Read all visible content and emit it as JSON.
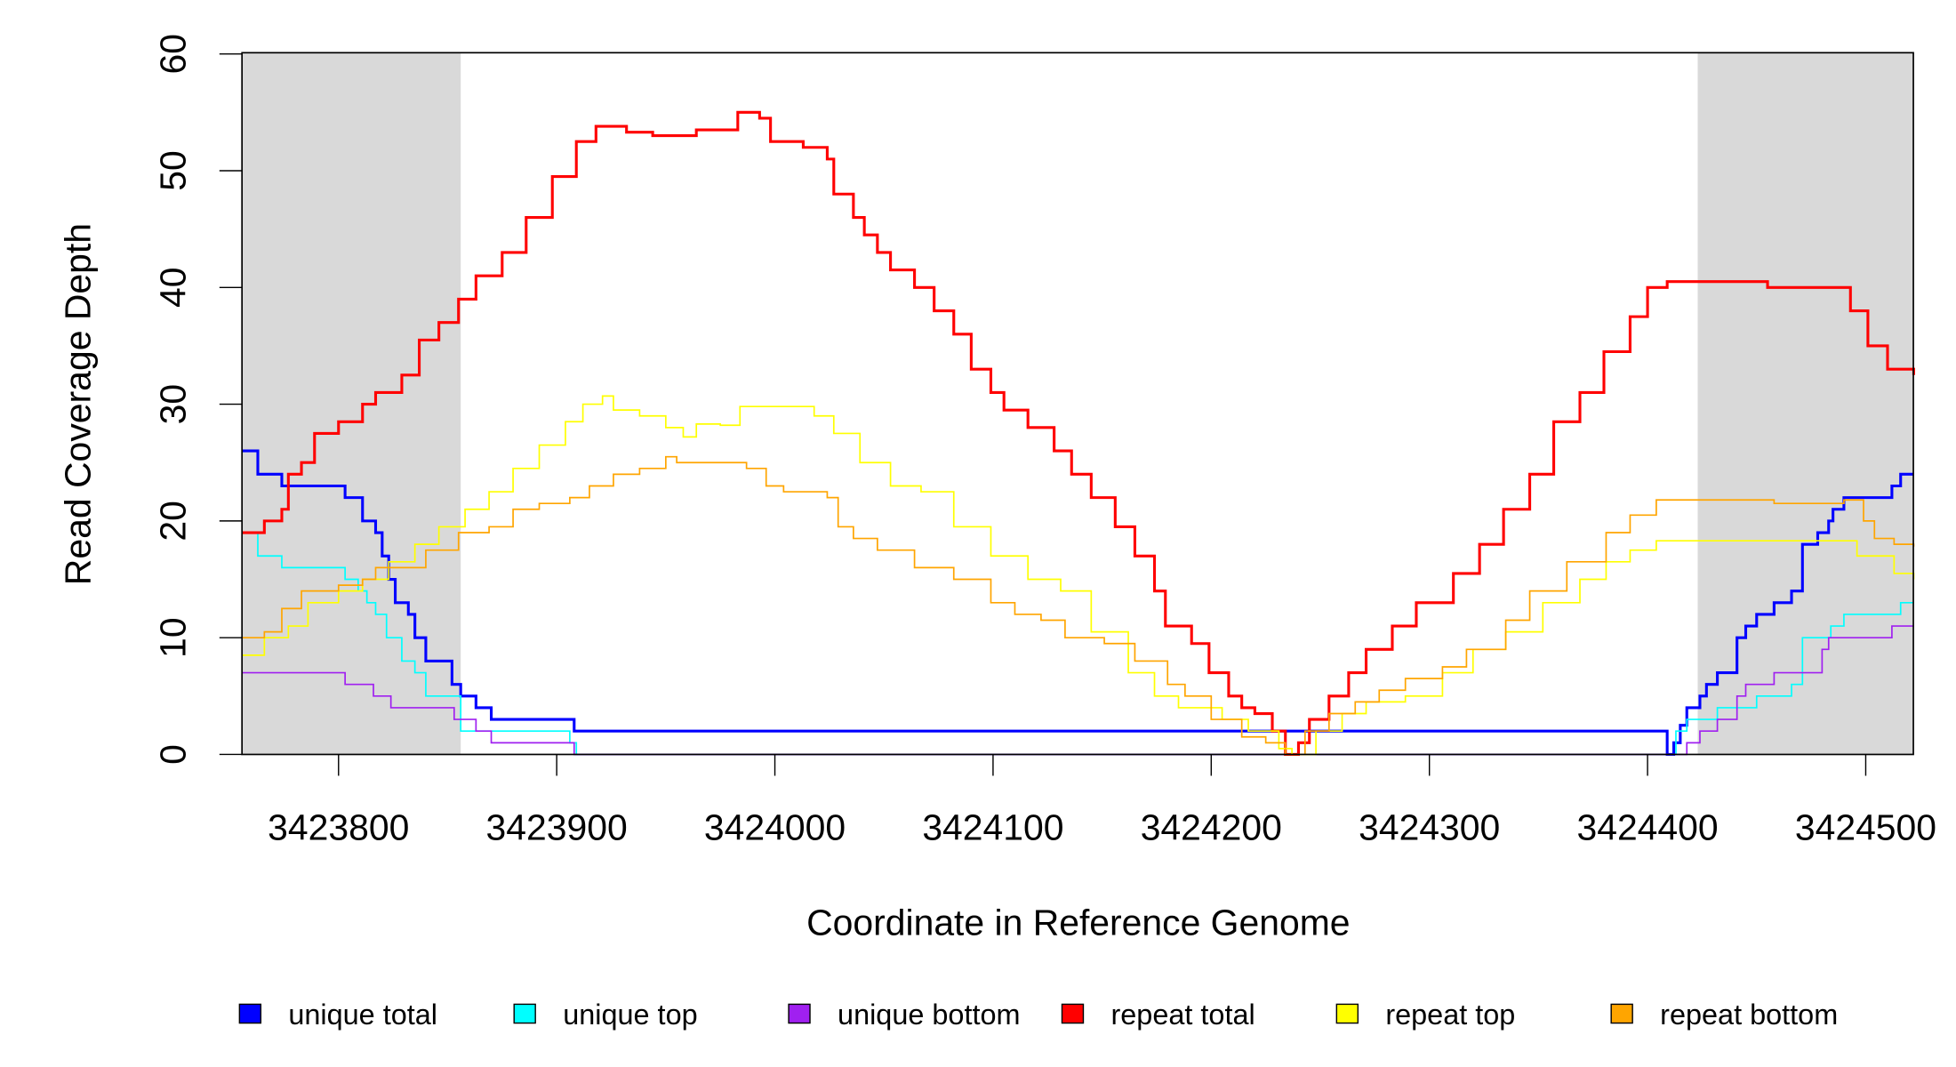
{
  "chart_data": {
    "type": "line",
    "step": true,
    "title": "",
    "xlabel": "Coordinate in Reference Genome",
    "ylabel": "Read Coverage Depth",
    "xlim": [
      3423756,
      3424522
    ],
    "ylim": [
      0,
      60
    ],
    "xticks": [
      3423800,
      3423900,
      3424000,
      3424100,
      3424200,
      3424300,
      3424400,
      3424500
    ],
    "xtick_labels": [
      "3423800",
      "3423900",
      "3424000",
      "3424100",
      "3424200",
      "3424300",
      "3424400",
      "3424500"
    ],
    "yticks": [
      0,
      10,
      20,
      30,
      40,
      50,
      60
    ],
    "ytick_labels": [
      "0",
      "10",
      "20",
      "30",
      "40",
      "50",
      "60"
    ],
    "grid": false,
    "shaded_regions": [
      [
        3423756,
        3423856
      ],
      [
        3424423,
        3424522
      ]
    ],
    "shade_color": "#d9d9d9",
    "legend_position": "bottom",
    "series": [
      {
        "name": "unique total",
        "color": "#0000ff",
        "width": 2.2,
        "x": [
          3423756,
          3423763,
          3423774,
          3423797,
          3423803,
          3423811,
          3423817,
          3423820,
          3423823,
          3423826,
          3423832,
          3423835,
          3423840,
          3423852,
          3423856,
          3423863,
          3423870,
          3423908,
          3424409,
          3424412,
          3424415,
          3424418,
          3424424,
          3424427,
          3424432,
          3424441,
          3424445,
          3424450,
          3424458,
          3424466,
          3424471,
          3424478,
          3424483,
          3424485,
          3424490,
          3424512,
          3424516,
          3424522
        ],
        "y": [
          26,
          24,
          23,
          23,
          22,
          20,
          19,
          17,
          15,
          13,
          12,
          10,
          8,
          6,
          5,
          4,
          3,
          2,
          0,
          1,
          2.5,
          4,
          5,
          6,
          7,
          10,
          11,
          12,
          13,
          14,
          18,
          19,
          20,
          21,
          22,
          23,
          24,
          24
        ]
      },
      {
        "name": "unique top",
        "color": "#00ffff",
        "width": 1.2,
        "x": [
          3423756,
          3423763,
          3423774,
          3423797,
          3423803,
          3423809,
          3423813,
          3423817,
          3423822,
          3423829,
          3423835,
          3423840,
          3423856,
          3423906,
          3423909,
          3424409,
          3424413,
          3424418,
          3424432,
          3424450,
          3424466,
          3424471,
          3424484,
          3424490,
          3424516,
          3424522
        ],
        "y": [
          19,
          17,
          16,
          16,
          15,
          14,
          13,
          12,
          10,
          8,
          7,
          5,
          2,
          1,
          0,
          0,
          2,
          3,
          4,
          5,
          6,
          10,
          11,
          12,
          13,
          13
        ]
      },
      {
        "name": "unique bottom",
        "color": "#a020f0",
        "width": 1.2,
        "x": [
          3423756,
          3423803,
          3423816,
          3423824,
          3423853,
          3423863,
          3423870,
          3423908,
          3424415,
          3424418,
          3424424,
          3424432,
          3424441,
          3424445,
          3424458,
          3424480,
          3424483,
          3424512,
          3424522
        ],
        "y": [
          7,
          6,
          5,
          4,
          3,
          2,
          1,
          0,
          0,
          1,
          2,
          3,
          5,
          6,
          7,
          9,
          10,
          11,
          11
        ]
      },
      {
        "name": "repeat total",
        "color": "#ff0000",
        "width": 2.2,
        "x": [
          3423756,
          3423766,
          3423774,
          3423777,
          3423783,
          3423789,
          3423800,
          3423811,
          3423817,
          3423829,
          3423837,
          3423846,
          3423855,
          3423863,
          3423875,
          3423886,
          3423898,
          3423909,
          3423918,
          3423932,
          3423944,
          3423955,
          3423964,
          3423975,
          3423983,
          3423993,
          3423998,
          3424013,
          3424024,
          3424027,
          3424036,
          3424041,
          3424047,
          3424053,
          3424064,
          3424073,
          3424082,
          3424090,
          3424099,
          3424105,
          3424116,
          3424128,
          3424136,
          3424145,
          3424156,
          3424165,
          3424174,
          3424179,
          3424191,
          3424199,
          3424208,
          3424214,
          3424220,
          3424228,
          3424234,
          3424240,
          3424245,
          3424254,
          3424263,
          3424271,
          3424283,
          3424294,
          3424311,
          3424323,
          3424334,
          3424346,
          3424357,
          3424369,
          3424380,
          3424392,
          3424400,
          3424409,
          3424444,
          3424455,
          3424487,
          3424493,
          3424501,
          3424510,
          3424522
        ],
        "y": [
          19,
          20,
          21,
          24,
          25,
          27.5,
          28.5,
          30,
          31,
          32.5,
          35.5,
          37,
          39,
          41,
          43,
          46,
          49.5,
          52.5,
          53.8,
          53.3,
          53,
          53,
          53.5,
          53.5,
          55,
          54.5,
          52.5,
          52,
          51,
          48,
          46,
          44.5,
          43,
          41.5,
          40,
          38,
          36,
          33,
          31,
          29.5,
          28,
          26,
          24,
          22,
          19.5,
          17,
          14,
          11,
          9.5,
          7,
          5,
          4,
          3.5,
          2,
          0,
          1,
          3,
          5,
          7,
          9,
          11,
          13,
          15.5,
          18,
          21,
          24,
          28.5,
          31,
          34.5,
          37.5,
          40,
          40.5,
          40.5,
          40,
          40,
          38,
          35,
          33,
          32.5
        ]
      },
      {
        "name": "repeat top",
        "color": "#ffff00",
        "width": 1.2,
        "x": [
          3423756,
          3423766,
          3423777,
          3423786,
          3423800,
          3423811,
          3423823,
          3423835,
          3423846,
          3423858,
          3423869,
          3423880,
          3423892,
          3423904,
          3423912,
          3423921,
          3423926,
          3423938,
          3423950,
          3423958,
          3423964,
          3423975,
          3423984,
          3423996,
          3424018,
          3424027,
          3424039,
          3424053,
          3424067,
          3424082,
          3424099,
          3424116,
          3424131,
          3424145,
          3424162,
          3424174,
          3424185,
          3424205,
          3424217,
          3424231,
          3424237,
          3424248,
          3424260,
          3424271,
          3424289,
          3424306,
          3424320,
          3424335,
          3424352,
          3424369,
          3424381,
          3424392,
          3424404,
          3424450,
          3424484,
          3424496,
          3424513,
          3424522
        ],
        "y": [
          8.5,
          10,
          11,
          13,
          14,
          15,
          16.5,
          18,
          19.5,
          21,
          22.5,
          24.5,
          26.5,
          28.5,
          30,
          30.7,
          29.5,
          29,
          28,
          27.2,
          28.3,
          28.2,
          29.8,
          29.8,
          29,
          27.5,
          25,
          23,
          22.5,
          19.5,
          17,
          15,
          14,
          10.5,
          7,
          5,
          4,
          3,
          2,
          0.5,
          0,
          2,
          3.5,
          4.5,
          5,
          7,
          9,
          10.5,
          13,
          15,
          16.5,
          17.5,
          18.3,
          18.3,
          18.3,
          17,
          15.5,
          15
        ]
      },
      {
        "name": "repeat bottom",
        "color": "#ffa500",
        "width": 1.2,
        "x": [
          3423756,
          3423766,
          3423774,
          3423783,
          3423800,
          3423811,
          3423817,
          3423829,
          3423840,
          3423855,
          3423869,
          3423880,
          3423892,
          3423906,
          3423915,
          3423926,
          3423938,
          3423950,
          3423955,
          3423978,
          3423987,
          3423996,
          3424004,
          3424024,
          3424029,
          3424036,
          3424047,
          3424064,
          3424082,
          3424099,
          3424110,
          3424122,
          3424133,
          3424151,
          3424165,
          3424180,
          3424188,
          3424200,
          3424214,
          3424225,
          3424234,
          3424243,
          3424254,
          3424266,
          3424277,
          3424289,
          3424306,
          3424317,
          3424335,
          3424346,
          3424363,
          3424381,
          3424392,
          3424404,
          3424450,
          3424458,
          3424490,
          3424499,
          3424504,
          3424513,
          3424522
        ],
        "y": [
          10,
          10.5,
          12.5,
          14,
          14.5,
          15,
          16,
          16,
          17.5,
          19,
          19.5,
          21,
          21.5,
          22,
          23,
          24,
          24.5,
          25.5,
          25,
          25,
          24.5,
          23,
          22.5,
          22,
          19.5,
          18.5,
          17.5,
          16,
          15,
          13,
          12,
          11.5,
          10,
          9.5,
          8,
          6,
          5,
          3,
          1.5,
          1,
          0,
          2,
          3.5,
          4.5,
          5.5,
          6.5,
          7.5,
          9,
          11.5,
          14,
          16.5,
          19,
          20.5,
          21.8,
          21.8,
          21.5,
          21.8,
          20,
          18.5,
          18,
          17.8
        ]
      }
    ]
  }
}
